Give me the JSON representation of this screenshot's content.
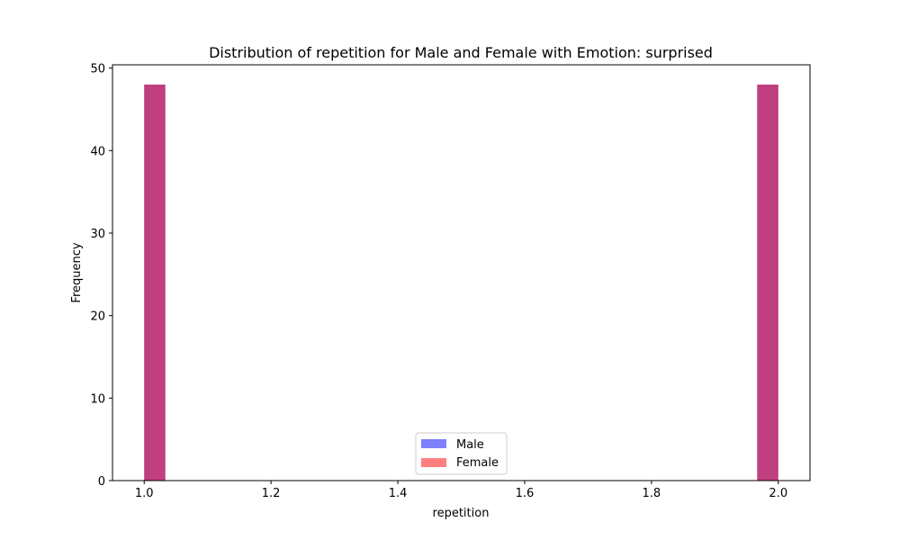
{
  "chart_data": {
    "type": "bar",
    "title": "Distribution of repetition for Male and Female with Emotion: surprised",
    "xlabel": "repetition",
    "ylabel": "Frequency",
    "xlim": [
      0.95,
      2.05
    ],
    "ylim": [
      0,
      50.4
    ],
    "x_ticks": [
      1.0,
      1.2,
      1.4,
      1.6,
      1.8,
      2.0
    ],
    "x_tick_labels": [
      "1.0",
      "1.2",
      "1.4",
      "1.6",
      "1.8",
      "2.0"
    ],
    "y_ticks": [
      0,
      10,
      20,
      30,
      40,
      50
    ],
    "y_tick_labels": [
      "0",
      "10",
      "20",
      "30",
      "40",
      "50"
    ],
    "bins": 30,
    "bin_range": [
      1.0,
      2.0
    ],
    "series": [
      {
        "name": "Male",
        "color": "#0000ff",
        "alpha": 0.5,
        "bins": [
          {
            "x0": 1.0,
            "x1": 1.0333,
            "count": 48
          },
          {
            "x0": 1.9667,
            "x1": 2.0,
            "count": 48
          }
        ]
      },
      {
        "name": "Female",
        "color": "#ff0000",
        "alpha": 0.5,
        "bins": [
          {
            "x0": 1.0,
            "x1": 1.0333,
            "count": 48
          },
          {
            "x0": 1.9667,
            "x1": 2.0,
            "count": 48
          }
        ]
      }
    ],
    "legend": {
      "position": "lower center"
    },
    "grid": false
  }
}
